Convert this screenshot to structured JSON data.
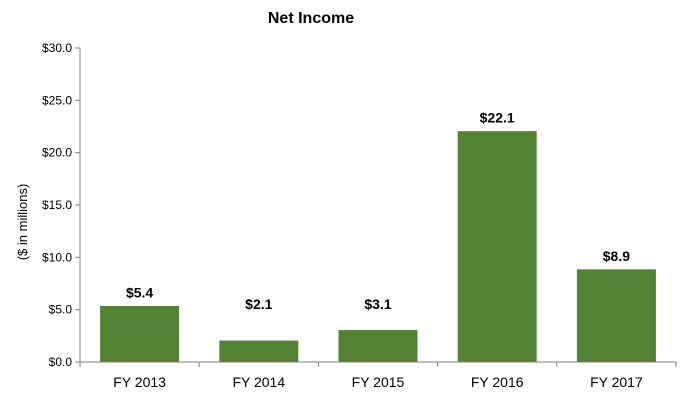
{
  "chart_data": {
    "type": "bar",
    "title": "Net Income",
    "xlabel": "",
    "ylabel": "($ in millions)",
    "categories": [
      "FY 2013",
      "FY 2014",
      "FY 2015",
      "FY 2016",
      "FY 2017"
    ],
    "values": [
      5.4,
      2.1,
      3.1,
      22.1,
      8.9
    ],
    "data_labels": [
      "$5.4",
      "$2.1",
      "$3.1",
      "$22.1",
      "$8.9"
    ],
    "ylim": [
      0,
      30
    ],
    "yticks": [
      0,
      5,
      10,
      15,
      20,
      25,
      30
    ],
    "ytick_labels": [
      "$0.0",
      "$5.0",
      "$10.0",
      "$15.0",
      "$20.0",
      "$25.0",
      "$30.0"
    ],
    "grid": false,
    "legend": "none",
    "colors": {
      "bar": "#548235",
      "axis": "#7f7f7f"
    }
  }
}
